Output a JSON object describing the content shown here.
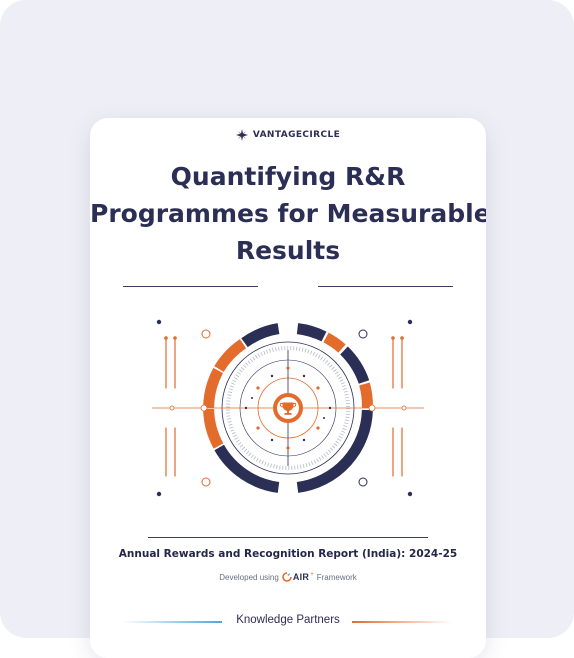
{
  "brand": {
    "name": "VANTAGECIRCLE",
    "logo_icon": "vantage-circle-star-icon"
  },
  "title_lines": [
    "Quantifying R&R",
    "Programmes for Measurable",
    "Results"
  ],
  "report_title": "Annual Rewards and Recognition Report (India): 2024-25",
  "developed": {
    "prefix": "Developed using",
    "framework_logo": "AIR",
    "suffix": "Framework"
  },
  "partners_heading": "Knowledge Partners",
  "colors": {
    "navy": "#2b2e55",
    "orange": "#e36b2c",
    "light_blue": "#4fa6d8",
    "background": "#eeeff6"
  },
  "graphic": {
    "center_icon": "trophy-icon"
  }
}
